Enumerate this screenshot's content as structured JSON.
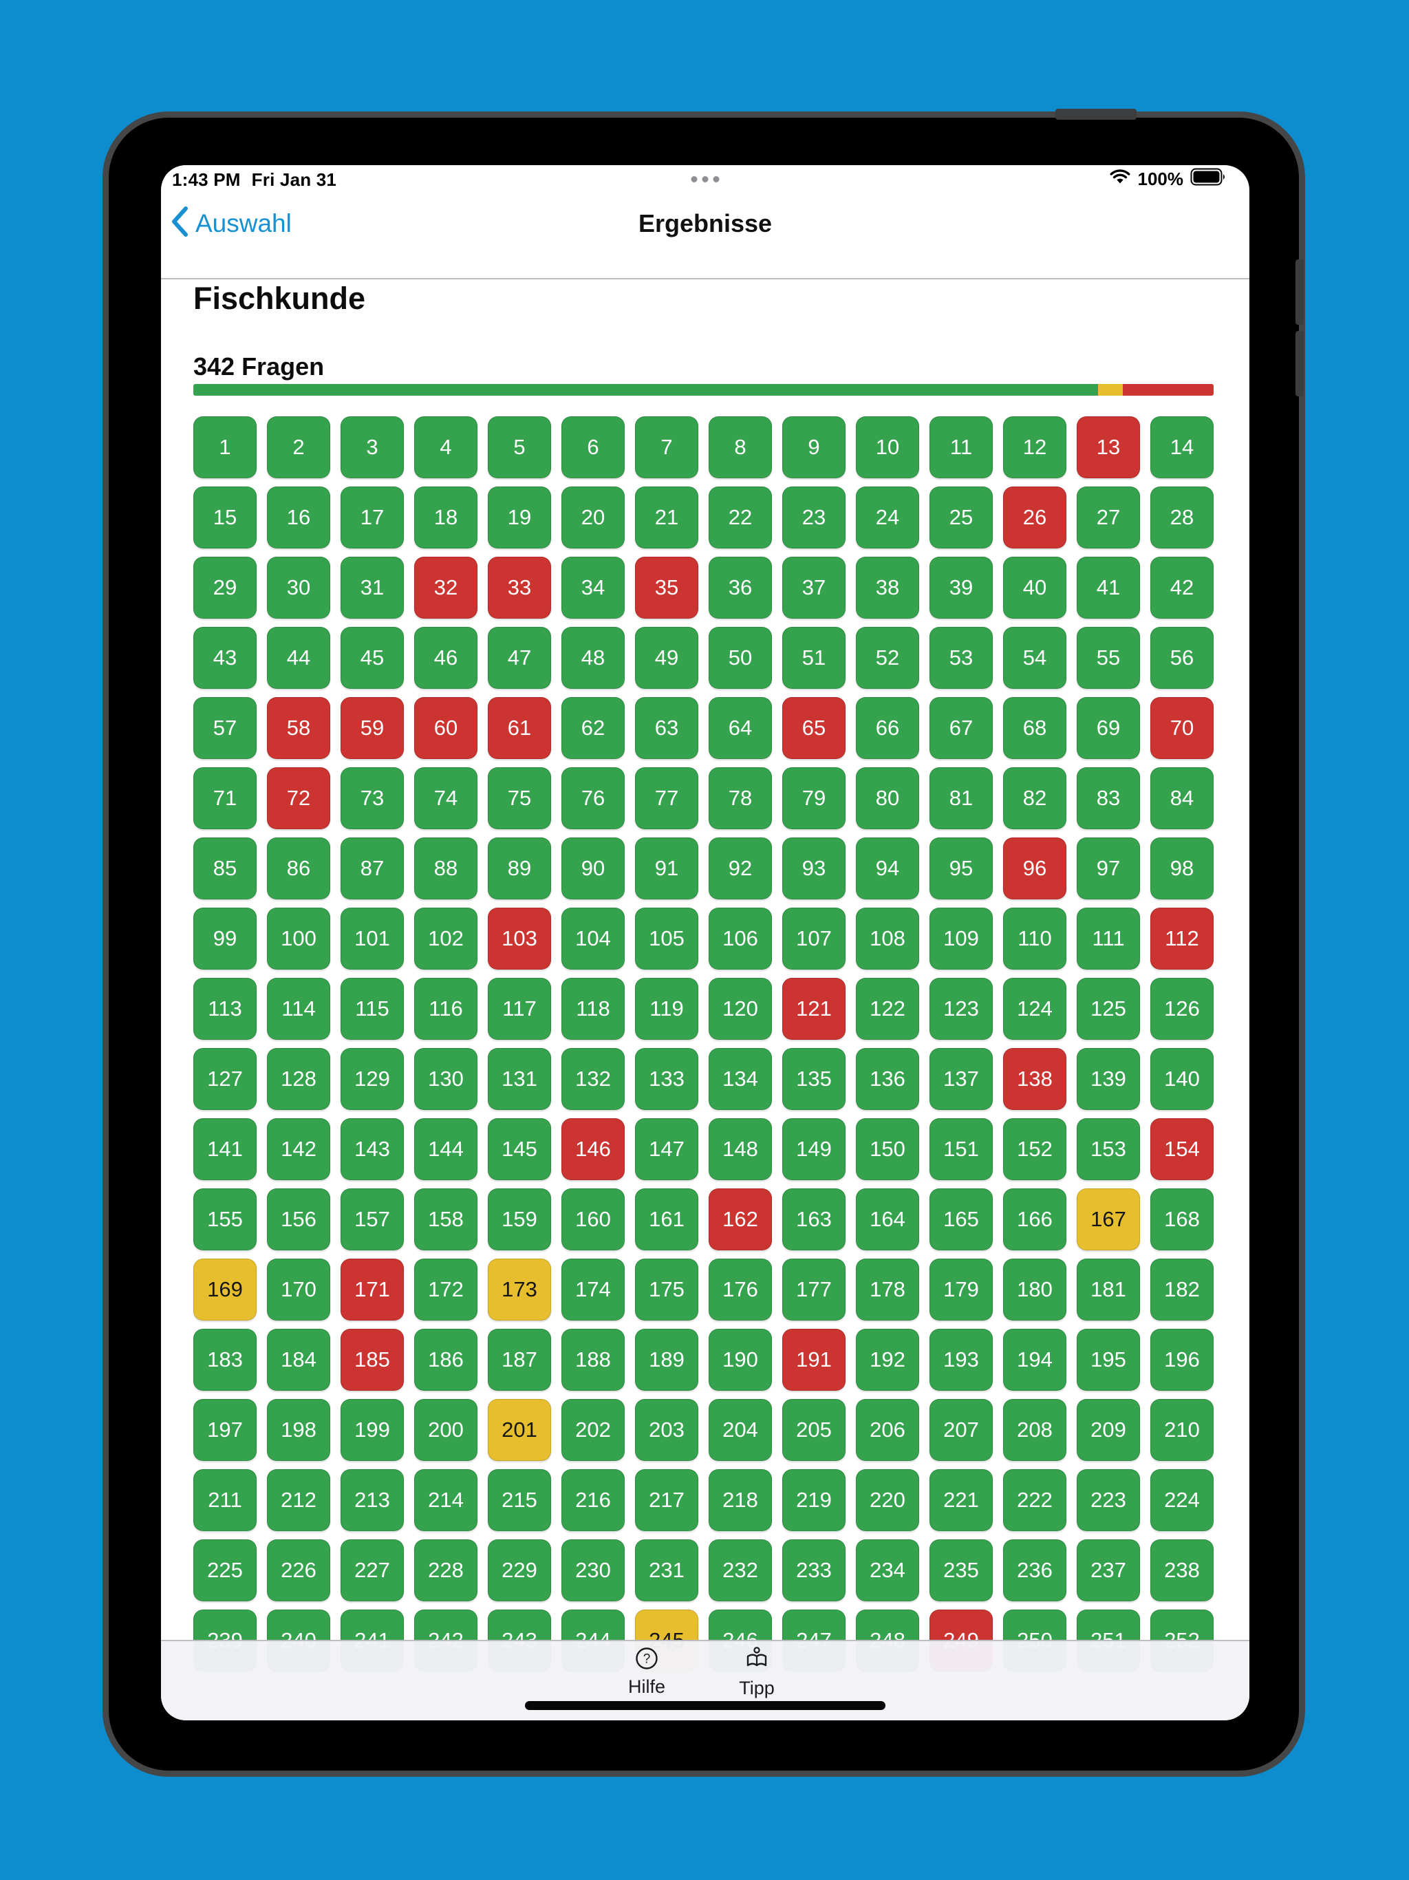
{
  "status_bar": {
    "time": "1:43 PM",
    "date": "Fri Jan 31",
    "battery": "100%"
  },
  "nav": {
    "back_label": "Auswahl",
    "title": "Ergebnisse"
  },
  "header": {
    "title": "Fischkunde",
    "question_count": "342 Fragen"
  },
  "progress": {
    "segments": [
      {
        "status": "correct",
        "color": "#35a24d",
        "percent": 88.7
      },
      {
        "status": "skipped",
        "color": "#e7bf2e",
        "percent": 2.4
      },
      {
        "status": "wrong",
        "color": "#cb3430",
        "percent": 8.9
      }
    ]
  },
  "tiles": {
    "visible_count": 252,
    "red": [
      13,
      26,
      32,
      33,
      35,
      58,
      59,
      60,
      61,
      65,
      70,
      72,
      96,
      103,
      112,
      121,
      138,
      146,
      154,
      162,
      171,
      185,
      191,
      249
    ],
    "yellow": [
      167,
      169,
      173,
      201,
      245
    ]
  },
  "toolbar": {
    "items": [
      {
        "label": "Hilfe",
        "icon": "question-circle-icon"
      },
      {
        "label": "Tipp",
        "icon": "reader-icon"
      }
    ]
  },
  "colors": {
    "background": "#0e8dce",
    "accent_blue": "#1791d2",
    "tile_green": "#35a24d",
    "tile_red": "#cb3430",
    "tile_yellow": "#e7bf2e"
  }
}
